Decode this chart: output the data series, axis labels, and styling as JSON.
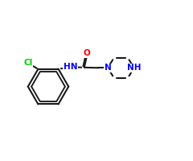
{
  "background_color": "#ffffff",
  "bond_color": "#1a1a1a",
  "atom_colors": {
    "O": "#ff0000",
    "N": "#0000ff",
    "Cl": "#00cc00",
    "C": "#1a1a1a"
  },
  "bond_width": 1.5,
  "figsize": [
    2.4,
    2.0
  ],
  "dpi": 100,
  "xlim": [
    0,
    10
  ],
  "ylim": [
    0,
    8.33
  ]
}
